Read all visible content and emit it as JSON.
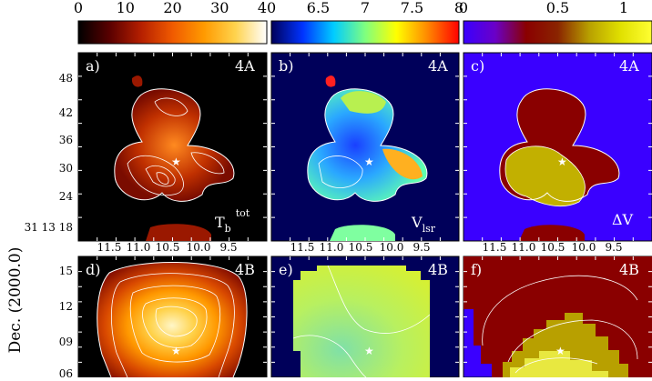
{
  "colorbars": [
    {
      "ticks": [
        "0",
        "10",
        "20",
        "30",
        "40"
      ],
      "colors": [
        "#000000",
        "#5a0000",
        "#b51f00",
        "#f05a00",
        "#ff9a00",
        "#ffd34d",
        "#ffffff"
      ]
    },
    {
      "ticks": [
        "6.5",
        "7",
        "7.5",
        "8"
      ],
      "colors": [
        "#00005a",
        "#0033ff",
        "#00ccff",
        "#7fff7f",
        "#ffff00",
        "#ff8800",
        "#ff0000"
      ]
    },
    {
      "ticks": [
        "0",
        "0.5",
        "1"
      ],
      "colors": [
        "#3a00ff",
        "#6a00c8",
        "#8a0000",
        "#8a2400",
        "#b8a000",
        "#e0e000",
        "#ffff33"
      ]
    }
  ],
  "panels_top": [
    {
      "letter": "a)",
      "region": "4A",
      "label_main": "T",
      "label_sub": "b",
      "label_sup": "tot"
    },
    {
      "letter": "b)",
      "region": "4A",
      "label_main": "V",
      "label_sub": "lsr",
      "label_sup": ""
    },
    {
      "letter": "c)",
      "region": "4A",
      "label_main": "ΔV",
      "label_sub": "",
      "label_sup": ""
    }
  ],
  "panels_bottom": [
    {
      "letter": "d)",
      "region": "4B"
    },
    {
      "letter": "e)",
      "region": "4B"
    },
    {
      "letter": "f)",
      "region": "4B"
    }
  ],
  "ra_ticks": [
    "11.5",
    "11.0",
    "10.5",
    "10.0",
    "9.5"
  ],
  "dec_ticks_top": [
    "48",
    "42",
    "36",
    "30",
    "24",
    "31 13 18"
  ],
  "dec_ticks_bottom": [
    "15",
    "12",
    "09",
    "06"
  ],
  "ylabel": "Dec.  (2000.0)",
  "star_glyph": "★"
}
